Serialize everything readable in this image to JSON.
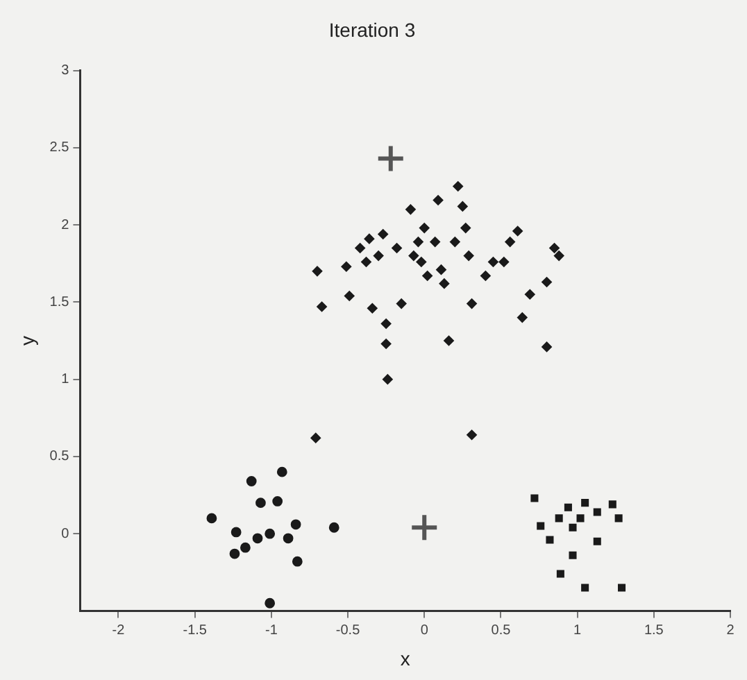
{
  "chart_data": {
    "type": "scatter",
    "title": "Iteration 3",
    "xlabel": "x",
    "ylabel": "y",
    "xlim": [
      -2.25,
      2
    ],
    "ylim": [
      -0.5,
      3
    ],
    "xticks": [
      -2,
      -1.5,
      -1,
      -0.5,
      0,
      0.5,
      1,
      1.5,
      2
    ],
    "yticks": [
      0,
      0.5,
      1,
      1.5,
      2,
      2.5,
      3
    ],
    "grid": false,
    "legend": false,
    "series": [
      {
        "color": "#1a1a1a",
        "marker": "circle",
        "x": [
          -1.39,
          -1.13,
          -0.93,
          -1.07,
          -0.96,
          -0.84,
          -1.23,
          -1.24,
          -1.17,
          -1.09,
          -1.01,
          -0.89,
          -0.83,
          -0.59,
          -1.01
        ],
        "values": [
          0.1,
          0.34,
          0.4,
          0.2,
          0.21,
          0.06,
          0.01,
          -0.13,
          -0.09,
          -0.03,
          0,
          -0.03,
          -0.18,
          0.04,
          -0.45
        ]
      },
      {
        "color": "#1a1a1a",
        "marker": "diamond",
        "x": [
          -0.7,
          -0.67,
          -0.51,
          -0.49,
          -0.42,
          -0.38,
          -0.36,
          -0.34,
          -0.3,
          -0.27,
          -0.25,
          -0.25,
          -0.24,
          -0.18,
          -0.15,
          -0.09,
          -0.07,
          -0.04,
          -0.02,
          0,
          0.02,
          0.07,
          0.09,
          0.11,
          0.13,
          0.16,
          0.2,
          0.22,
          0.25,
          0.27,
          0.29,
          0.31,
          0.4,
          0.45,
          0.52,
          0.56,
          0.61,
          0.64,
          0.69,
          0.8,
          0.85,
          0.88,
          0.8,
          0.31,
          -0.71
        ],
        "values": [
          1.7,
          1.47,
          1.73,
          1.54,
          1.85,
          1.76,
          1.91,
          1.46,
          1.8,
          1.94,
          1.36,
          1.23,
          1,
          1.85,
          1.49,
          2.1,
          1.8,
          1.89,
          1.76,
          1.98,
          1.67,
          1.89,
          2.16,
          1.71,
          1.62,
          1.25,
          1.89,
          2.25,
          2.12,
          1.98,
          1.8,
          1.49,
          1.67,
          1.76,
          1.76,
          1.89,
          1.96,
          1.4,
          1.55,
          1.63,
          1.85,
          1.8,
          1.21,
          0.64,
          0.62
        ]
      },
      {
        "color": "#1a1a1a",
        "marker": "square",
        "x": [
          0.72,
          0.76,
          0.82,
          0.88,
          0.94,
          0.97,
          1.05,
          1.13,
          1.23,
          1.27,
          1.02,
          1.13,
          0.97,
          0.89,
          1.05,
          1.29
        ],
        "values": [
          0.23,
          0.05,
          -0.04,
          0.1,
          0.17,
          0.04,
          0.2,
          0.14,
          0.19,
          0.1,
          0.1,
          -0.05,
          -0.14,
          -0.26,
          -0.35,
          -0.35
        ]
      },
      {
        "color": "#555555",
        "marker": "cross",
        "x": [
          -0.22,
          0
        ],
        "values": [
          2.43,
          0.04
        ]
      }
    ]
  }
}
